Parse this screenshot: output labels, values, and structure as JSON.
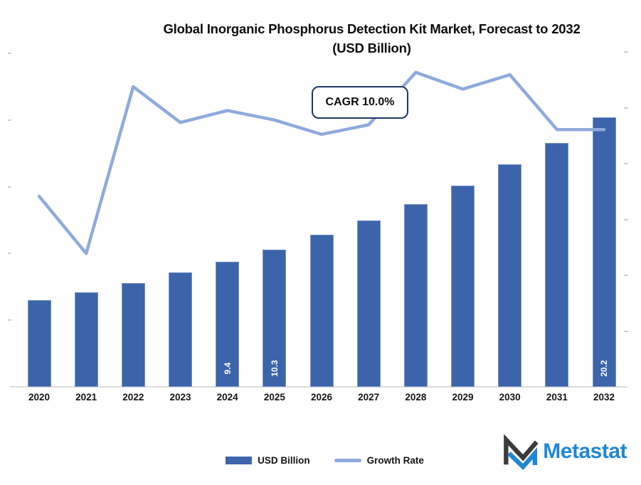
{
  "title": {
    "line1": "Global Inorganic Phosphorus Detection Kit Market, Forecast to 2032",
    "line2": "(USD Billion)"
  },
  "annotation": {
    "cagr_label": "CAGR 10.0%"
  },
  "legend": {
    "items": [
      {
        "label": "USD Billion",
        "swatch": "bar-swatch"
      },
      {
        "label": "Growth Rate",
        "swatch": "line-swatch"
      }
    ]
  },
  "logo": {
    "text": "Metastat"
  },
  "colors": {
    "bar": "#3C64AA",
    "line": "#8FAADC",
    "annotation_border": "#1F3864",
    "logo_blue": "#1E88D4",
    "logo_dark": "#3B3B3B",
    "axis_line": "#DCDCDC",
    "tick": "#C7CDD9",
    "text": "#141414",
    "bar_label": "#FFFFFF"
  },
  "chart_data": {
    "type": "bar",
    "title": "Global Inorganic Phosphorus Detection Kit Market, Forecast to 2032 (USD Billion)",
    "categories": [
      "2020",
      "2021",
      "2022",
      "2023",
      "2024",
      "2025",
      "2026",
      "2027",
      "2028",
      "2029",
      "2030",
      "2031",
      "2032"
    ],
    "series": [
      {
        "name": "USD Billion",
        "type": "bar",
        "axis": "left",
        "values": [
          6.5,
          7.1,
          7.8,
          8.6,
          9.4,
          10.3,
          11.4,
          12.5,
          13.7,
          15.1,
          16.7,
          18.3,
          20.2
        ],
        "data_labels": [
          "",
          "",
          "",
          "",
          "9.4",
          "10.3",
          "",
          "",
          "",
          "",
          "",
          "",
          "20.2"
        ]
      },
      {
        "name": "Growth Rate",
        "type": "line",
        "axis": "right",
        "unit": "%",
        "values": [
          8.0,
          5.6,
          12.6,
          11.1,
          11.6,
          11.2,
          10.6,
          11.0,
          13.2,
          12.5,
          13.1,
          10.8,
          10.8
        ]
      }
    ],
    "left_axis_range": [
      0,
      25
    ],
    "right_axis_range": [
      0,
      14
    ],
    "axis_tick_labels_visible": false,
    "gridlines": false,
    "legend_position": "bottom",
    "annotation": "CAGR 10.0%"
  }
}
